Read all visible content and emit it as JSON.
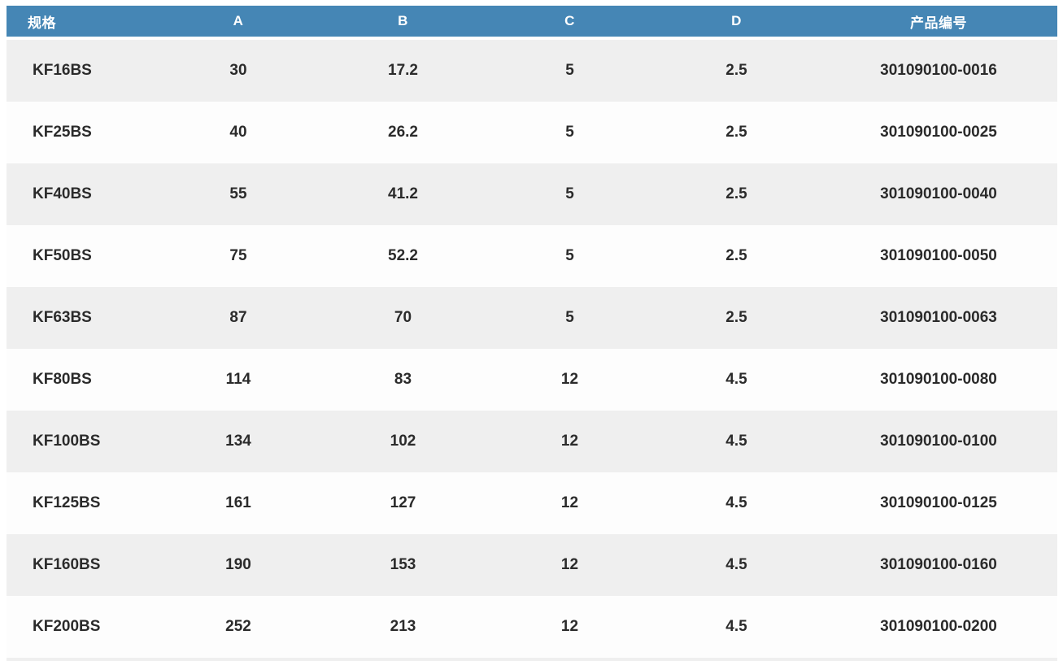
{
  "table": {
    "columns": [
      {
        "key": "spec",
        "label": "规格"
      },
      {
        "key": "a",
        "label": "A"
      },
      {
        "key": "b",
        "label": "B"
      },
      {
        "key": "c",
        "label": "C"
      },
      {
        "key": "d",
        "label": "D"
      },
      {
        "key": "part_no",
        "label": "产品编号"
      }
    ],
    "rows": [
      {
        "spec": "KF16BS",
        "a": "30",
        "b": "17.2",
        "c": "5",
        "d": "2.5",
        "part_no": "301090100-0016"
      },
      {
        "spec": "KF25BS",
        "a": "40",
        "b": "26.2",
        "c": "5",
        "d": "2.5",
        "part_no": "301090100-0025"
      },
      {
        "spec": "KF40BS",
        "a": "55",
        "b": "41.2",
        "c": "5",
        "d": "2.5",
        "part_no": "301090100-0040"
      },
      {
        "spec": "KF50BS",
        "a": "75",
        "b": "52.2",
        "c": "5",
        "d": "2.5",
        "part_no": "301090100-0050"
      },
      {
        "spec": "KF63BS",
        "a": "87",
        "b": "70",
        "c": "5",
        "d": "2.5",
        "part_no": "301090100-0063"
      },
      {
        "spec": "KF80BS",
        "a": "114",
        "b": "83",
        "c": "12",
        "d": "4.5",
        "part_no": "301090100-0080"
      },
      {
        "spec": "KF100BS",
        "a": "134",
        "b": "102",
        "c": "12",
        "d": "4.5",
        "part_no": "301090100-0100"
      },
      {
        "spec": "KF125BS",
        "a": "161",
        "b": "127",
        "c": "12",
        "d": "4.5",
        "part_no": "301090100-0125"
      },
      {
        "spec": "KF160BS",
        "a": "190",
        "b": "153",
        "c": "12",
        "d": "4.5",
        "part_no": "301090100-0160"
      },
      {
        "spec": "KF200BS",
        "a": "252",
        "b": "213",
        "c": "12",
        "d": "4.5",
        "part_no": "301090100-0200"
      }
    ]
  },
  "colors": {
    "header_bg": "#4586b5",
    "header_text": "#ffffff",
    "row_stripe": "#efefef",
    "row_plain": "#fdfdfd",
    "text": "#2b2b2b"
  }
}
